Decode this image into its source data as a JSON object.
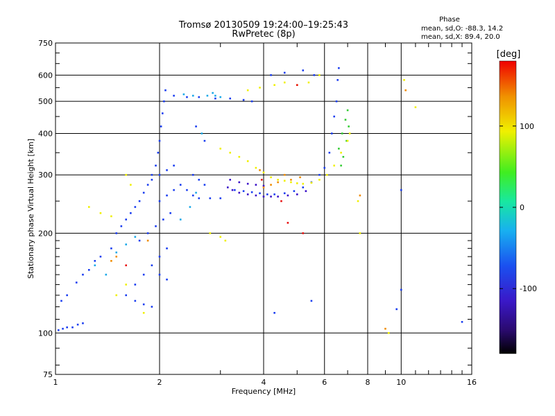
{
  "chart_data": {
    "type": "scatter",
    "title": "Tromsø 20130509 19:24:00–19:25:43",
    "subtitle": "RwPretec (8p)",
    "phase_box": {
      "heading": "Phase",
      "line_o": "mean, sd,O: -88.3, 14.2",
      "line_x": "mean, sd,X:  89.4, 20.0"
    },
    "xlabel": "Frequency [MHz]",
    "ylabel": "Stationary phase Virtual Height [km]",
    "xscale": "log",
    "yscale": "log",
    "xlim": [
      1,
      16
    ],
    "ylim": [
      75,
      750
    ],
    "x_ticks": [
      1,
      2,
      4,
      6,
      8,
      10,
      16
    ],
    "x_tick_labels": [
      "1",
      "2",
      "4",
      "6",
      "8",
      "10",
      "16"
    ],
    "x_minor_ticks": [
      3,
      5,
      7,
      9,
      11,
      12,
      13,
      14,
      15
    ],
    "y_ticks": [
      75,
      100,
      200,
      300,
      400,
      500,
      600,
      750
    ],
    "y_tick_labels": [
      "75",
      "100",
      "200",
      "300",
      "400",
      "500",
      "600",
      "750"
    ],
    "y_minor_ticks": [
      80,
      90,
      110,
      120,
      130,
      140,
      150,
      160,
      170,
      180,
      190,
      250,
      350,
      450,
      550,
      650,
      700
    ],
    "grid": true,
    "colorbar": {
      "label": "[deg]",
      "range": [
        -180,
        180
      ],
      "ticks": [
        100,
        0,
        -100
      ],
      "tick_labels": [
        "100",
        "0",
        "-100"
      ]
    },
    "series": [
      {
        "phase": -100,
        "color": "#1a3df0",
        "points": [
          [
            1.02,
            102
          ],
          [
            1.05,
            103
          ],
          [
            1.08,
            104
          ],
          [
            1.12,
            104
          ],
          [
            1.16,
            106
          ],
          [
            1.2,
            107
          ],
          [
            1.04,
            125
          ],
          [
            1.08,
            130
          ],
          [
            1.15,
            142
          ],
          [
            1.2,
            150
          ],
          [
            1.25,
            155
          ],
          [
            1.3,
            165
          ],
          [
            1.35,
            170
          ],
          [
            1.45,
            180
          ],
          [
            1.5,
            200
          ],
          [
            1.55,
            210
          ],
          [
            1.6,
            220
          ],
          [
            1.65,
            230
          ],
          [
            1.7,
            240
          ],
          [
            1.75,
            250
          ],
          [
            1.8,
            265
          ],
          [
            1.85,
            280
          ],
          [
            1.9,
            300
          ],
          [
            1.95,
            320
          ],
          [
            1.98,
            350
          ],
          [
            2.0,
            380
          ],
          [
            2.02,
            420
          ],
          [
            2.04,
            460
          ],
          [
            2.06,
            500
          ],
          [
            2.08,
            540
          ],
          [
            1.7,
            140
          ],
          [
            1.8,
            150
          ],
          [
            1.9,
            160
          ],
          [
            2.0,
            170
          ],
          [
            2.1,
            180
          ],
          [
            1.75,
            190
          ],
          [
            1.85,
            200
          ],
          [
            1.95,
            210
          ],
          [
            2.05,
            220
          ],
          [
            2.15,
            230
          ],
          [
            2.0,
            250
          ],
          [
            2.1,
            260
          ],
          [
            2.2,
            270
          ],
          [
            1.9,
            290
          ],
          [
            2.0,
            300
          ],
          [
            2.1,
            310
          ],
          [
            2.2,
            320
          ],
          [
            2.3,
            280
          ],
          [
            2.4,
            270
          ],
          [
            2.5,
            260
          ],
          [
            2.6,
            255
          ],
          [
            2.8,
            255
          ],
          [
            3.0,
            255
          ],
          [
            2.2,
            520
          ],
          [
            2.4,
            515
          ],
          [
            2.6,
            515
          ],
          [
            2.9,
            510
          ],
          [
            3.2,
            510
          ],
          [
            3.5,
            505
          ],
          [
            3.7,
            500
          ],
          [
            3.3,
            270
          ],
          [
            3.5,
            268
          ],
          [
            3.7,
            266
          ],
          [
            3.9,
            264
          ],
          [
            4.1,
            262
          ],
          [
            4.3,
            262
          ],
          [
            4.6,
            264
          ],
          [
            4.9,
            268
          ],
          [
            5.2,
            275
          ],
          [
            5.5,
            285
          ],
          [
            5.8,
            300
          ],
          [
            6.0,
            315
          ],
          [
            6.2,
            350
          ],
          [
            6.3,
            400
          ],
          [
            6.4,
            450
          ],
          [
            6.5,
            500
          ],
          [
            6.55,
            580
          ],
          [
            6.6,
            630
          ],
          [
            4.2,
            600
          ],
          [
            4.6,
            610
          ],
          [
            5.2,
            620
          ],
          [
            5.6,
            600
          ],
          [
            1.6,
            130
          ],
          [
            1.7,
            125
          ],
          [
            1.8,
            122
          ],
          [
            1.9,
            120
          ],
          [
            2.0,
            150
          ],
          [
            2.1,
            145
          ],
          [
            4.3,
            115
          ],
          [
            5.5,
            125
          ],
          [
            9.7,
            118
          ],
          [
            10.0,
            270
          ],
          [
            10.0,
            135
          ],
          [
            15.0,
            108
          ],
          [
            2.5,
            300
          ],
          [
            2.6,
            290
          ],
          [
            2.7,
            280
          ],
          [
            2.55,
            420
          ],
          [
            2.7,
            380
          ]
        ]
      },
      {
        "phase": -120,
        "color": "#3a10c8",
        "points": [
          [
            3.15,
            275
          ],
          [
            3.25,
            270
          ],
          [
            3.4,
            265
          ],
          [
            3.6,
            262
          ],
          [
            3.8,
            260
          ],
          [
            4.0,
            258
          ],
          [
            4.2,
            258
          ],
          [
            4.4,
            258
          ],
          [
            4.7,
            260
          ],
          [
            5.0,
            262
          ],
          [
            5.3,
            268
          ],
          [
            3.2,
            290
          ],
          [
            3.4,
            285
          ],
          [
            3.6,
            282
          ],
          [
            3.8,
            280
          ],
          [
            4.0,
            278
          ]
        ]
      },
      {
        "phase": -40,
        "color": "#1aa8e8",
        "points": [
          [
            1.5,
            175
          ],
          [
            1.6,
            185
          ],
          [
            1.7,
            195
          ],
          [
            2.3,
            220
          ],
          [
            2.45,
            240
          ],
          [
            2.55,
            265
          ],
          [
            2.65,
            400
          ],
          [
            2.75,
            520
          ],
          [
            2.85,
            530
          ],
          [
            2.9,
            520
          ],
          [
            3.0,
            515
          ],
          [
            2.35,
            525
          ],
          [
            2.5,
            520
          ],
          [
            1.3,
            160
          ],
          [
            1.4,
            150
          ]
        ]
      },
      {
        "phase": 60,
        "color": "#33cc33",
        "points": [
          [
            6.6,
            360
          ],
          [
            6.75,
            400
          ],
          [
            6.9,
            440
          ],
          [
            7.0,
            470
          ],
          [
            7.05,
            420
          ],
          [
            6.95,
            380
          ],
          [
            6.8,
            340
          ],
          [
            6.7,
            320
          ]
        ]
      },
      {
        "phase": 100,
        "color": "#f0f000",
        "points": [
          [
            3.0,
            360
          ],
          [
            3.2,
            350
          ],
          [
            3.4,
            340
          ],
          [
            3.6,
            330
          ],
          [
            3.8,
            315
          ],
          [
            4.0,
            305
          ],
          [
            4.2,
            295
          ],
          [
            4.4,
            290
          ],
          [
            4.6,
            288
          ],
          [
            4.8,
            285
          ],
          [
            5.0,
            283
          ],
          [
            5.2,
            282
          ],
          [
            5.5,
            284
          ],
          [
            5.8,
            290
          ],
          [
            6.1,
            300
          ],
          [
            6.4,
            320
          ],
          [
            6.7,
            350
          ],
          [
            7.0,
            380
          ],
          [
            7.1,
            400
          ],
          [
            4.3,
            560
          ],
          [
            4.6,
            570
          ],
          [
            5.0,
            560
          ],
          [
            5.4,
            570
          ],
          [
            5.8,
            600
          ],
          [
            3.6,
            540
          ],
          [
            3.9,
            550
          ],
          [
            2.8,
            200
          ],
          [
            3.0,
            195
          ],
          [
            3.1,
            190
          ],
          [
            1.25,
            240
          ],
          [
            1.35,
            230
          ],
          [
            1.45,
            225
          ],
          [
            1.6,
            300
          ],
          [
            1.65,
            280
          ],
          [
            1.5,
            130
          ],
          [
            1.6,
            140
          ],
          [
            1.8,
            115
          ],
          [
            7.5,
            250
          ],
          [
            7.6,
            200
          ],
          [
            9.2,
            100
          ],
          [
            10.2,
            580
          ],
          [
            11.0,
            480
          ]
        ]
      },
      {
        "phase": 150,
        "color": "#f08c00",
        "points": [
          [
            4.0,
            275
          ],
          [
            4.2,
            280
          ],
          [
            4.4,
            285
          ],
          [
            4.8,
            290
          ],
          [
            3.9,
            310
          ],
          [
            1.45,
            165
          ],
          [
            1.5,
            170
          ],
          [
            1.85,
            190
          ],
          [
            4.6,
            300
          ],
          [
            5.1,
            295
          ],
          [
            7.6,
            260
          ],
          [
            9.0,
            103
          ],
          [
            10.3,
            540
          ]
        ]
      },
      {
        "phase": 175,
        "color": "#e81010",
        "points": [
          [
            3.95,
            290
          ],
          [
            4.5,
            250
          ],
          [
            5.2,
            200
          ],
          [
            5.0,
            560
          ],
          [
            1.6,
            160
          ],
          [
            4.7,
            215
          ]
        ]
      }
    ]
  }
}
